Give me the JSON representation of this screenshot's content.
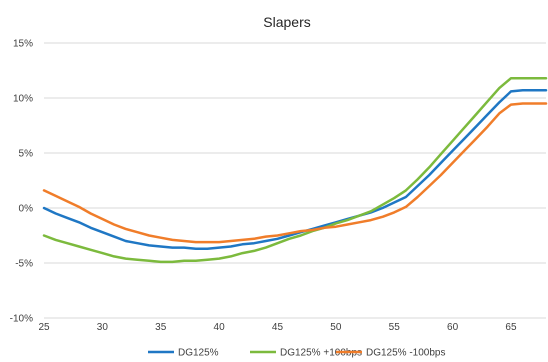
{
  "chart_data": {
    "type": "line",
    "title": "Slapers",
    "xlabel": "",
    "ylabel": "",
    "xlim": [
      25,
      68
    ],
    "ylim": [
      -10,
      15
    ],
    "x_ticks": [
      25,
      30,
      35,
      40,
      45,
      50,
      55,
      60,
      65
    ],
    "x_tick_labels": [
      "25",
      "30",
      "35",
      "40",
      "45",
      "50",
      "55",
      "60",
      "65"
    ],
    "y_ticks": [
      -10,
      -5,
      0,
      5,
      10,
      15
    ],
    "y_tick_labels": [
      "-10%",
      "-5%",
      "0%",
      "5%",
      "10%",
      "15%"
    ],
    "grid": "horizontal",
    "legend_position": "bottom",
    "x": [
      25,
      26,
      27,
      28,
      29,
      30,
      31,
      32,
      33,
      34,
      35,
      36,
      37,
      38,
      39,
      40,
      41,
      42,
      43,
      44,
      45,
      46,
      47,
      48,
      49,
      50,
      51,
      52,
      53,
      54,
      55,
      56,
      57,
      58,
      59,
      60,
      61,
      62,
      63,
      64,
      65,
      66,
      67,
      68
    ],
    "series": [
      {
        "name": "DG125%",
        "color": "#1f77c4",
        "values": [
          0.0,
          -0.5,
          -0.9,
          -1.3,
          -1.8,
          -2.2,
          -2.6,
          -3.0,
          -3.2,
          -3.4,
          -3.5,
          -3.6,
          -3.6,
          -3.7,
          -3.7,
          -3.6,
          -3.5,
          -3.3,
          -3.2,
          -3.0,
          -2.8,
          -2.5,
          -2.2,
          -1.9,
          -1.6,
          -1.3,
          -1.0,
          -0.7,
          -0.4,
          0.0,
          0.5,
          1.0,
          2.0,
          3.0,
          4.1,
          5.2,
          6.3,
          7.4,
          8.5,
          9.6,
          10.6,
          10.7,
          10.7,
          10.7
        ]
      },
      {
        "name": "DG125% +100bps",
        "color": "#7cba3d",
        "values": [
          -2.5,
          -2.9,
          -3.2,
          -3.5,
          -3.8,
          -4.1,
          -4.4,
          -4.6,
          -4.7,
          -4.8,
          -4.9,
          -4.9,
          -4.8,
          -4.8,
          -4.7,
          -4.6,
          -4.4,
          -4.1,
          -3.9,
          -3.6,
          -3.2,
          -2.8,
          -2.5,
          -2.1,
          -1.8,
          -1.4,
          -1.1,
          -0.7,
          -0.3,
          0.3,
          0.9,
          1.6,
          2.6,
          3.7,
          4.9,
          6.1,
          7.3,
          8.5,
          9.7,
          10.9,
          11.8,
          11.8,
          11.8,
          11.8
        ]
      },
      {
        "name": "DG125% -100bps",
        "color": "#f07d2a",
        "values": [
          1.6,
          1.1,
          0.6,
          0.1,
          -0.5,
          -1.0,
          -1.5,
          -1.9,
          -2.2,
          -2.5,
          -2.7,
          -2.9,
          -3.0,
          -3.1,
          -3.1,
          -3.1,
          -3.0,
          -2.9,
          -2.8,
          -2.6,
          -2.5,
          -2.3,
          -2.1,
          -2.0,
          -1.8,
          -1.7,
          -1.5,
          -1.3,
          -1.1,
          -0.8,
          -0.4,
          0.1,
          1.0,
          2.0,
          3.0,
          4.1,
          5.2,
          6.3,
          7.4,
          8.6,
          9.4,
          9.5,
          9.5,
          9.5
        ]
      }
    ]
  }
}
